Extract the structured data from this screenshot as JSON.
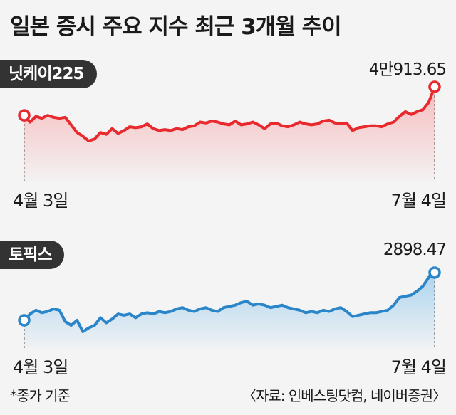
{
  "title": "일본 증시 주요 지수 최근 3개월 추이",
  "footnote": "*종가 기준",
  "source": "〈자료: 인베스팅닷컴, 네이버증권〉",
  "colors": {
    "nikkei_line": "#e8292e",
    "nikkei_fill": "#f6b9bb",
    "topix_line": "#2a86c8",
    "topix_fill": "#a9d2ee",
    "label_bg": "#333333"
  },
  "chart_data": [
    {
      "type": "line",
      "title": "닛케이225",
      "x_start_label": "4월 3일",
      "x_end_label": "7월 4일",
      "end_value_label": "4만913.65",
      "series": [
        {
          "values": [
            39400,
            39050,
            39350,
            39250,
            39400,
            39300,
            39250,
            39300,
            38900,
            38500,
            38300,
            38050,
            38150,
            38500,
            38400,
            38700,
            38450,
            38600,
            38800,
            38750,
            38800,
            38950,
            38700,
            38600,
            38650,
            38600,
            38700,
            38650,
            38800,
            38850,
            39050,
            39000,
            39100,
            39050,
            38950,
            38900,
            39100,
            38900,
            38950,
            39050,
            38900,
            38700,
            38950,
            39000,
            38850,
            38800,
            38900,
            39050,
            38950,
            38900,
            38950,
            39100,
            39150,
            39000,
            38950,
            39000,
            38600,
            38750,
            38800,
            38850,
            38850,
            38800,
            38950,
            39050,
            39350,
            39600,
            39450,
            39600,
            39700,
            40100,
            40913.65
          ]
        }
      ]
    },
    {
      "type": "line",
      "title": "토픽스",
      "x_start_label": "4월 3일",
      "x_end_label": "7월 4일",
      "end_value_label": "2898.47",
      "series": [
        {
          "values": [
            2710,
            2735,
            2750,
            2740,
            2745,
            2755,
            2750,
            2705,
            2690,
            2710,
            2665,
            2680,
            2690,
            2720,
            2700,
            2715,
            2735,
            2730,
            2735,
            2720,
            2735,
            2740,
            2735,
            2745,
            2740,
            2745,
            2755,
            2760,
            2750,
            2745,
            2755,
            2760,
            2750,
            2745,
            2760,
            2765,
            2770,
            2780,
            2785,
            2770,
            2775,
            2770,
            2760,
            2765,
            2770,
            2760,
            2755,
            2750,
            2740,
            2745,
            2740,
            2750,
            2745,
            2755,
            2760,
            2745,
            2725,
            2730,
            2735,
            2740,
            2740,
            2745,
            2750,
            2770,
            2800,
            2805,
            2810,
            2825,
            2845,
            2880,
            2898.47
          ]
        }
      ]
    }
  ]
}
